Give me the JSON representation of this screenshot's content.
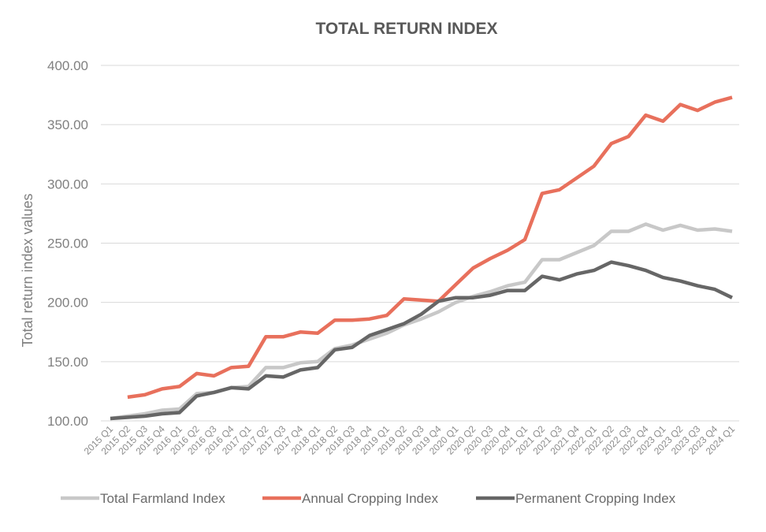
{
  "chart_data": {
    "type": "line",
    "title": "TOTAL RETURN INDEX",
    "ylabel": "Total return index values",
    "xlabel": "",
    "ylim": [
      100,
      400
    ],
    "yticks": [
      "100.00",
      "150.00",
      "200.00",
      "250.00",
      "300.00",
      "350.00",
      "400.00"
    ],
    "grid": true,
    "legend": "bottom",
    "categories": [
      "2015 Q1",
      "2015 Q2",
      "2015 Q3",
      "2015 Q4",
      "2016 Q1",
      "2016 Q2",
      "2016 Q3",
      "2016 Q4",
      "2017 Q1",
      "2017 Q2",
      "2017 Q3",
      "2017 Q4",
      "2018 Q1",
      "2018 Q2",
      "2018 Q3",
      "2018 Q4",
      "2019 Q1",
      "2019 Q2",
      "2019 Q3",
      "2019 Q4",
      "2020 Q1",
      "2020 Q2",
      "2020 Q3",
      "2020 Q4",
      "2021 Q1",
      "2021 Q2",
      "2021 Q3",
      "2021 Q4",
      "2022 Q1",
      "2022 Q2",
      "2022 Q3",
      "2022 Q4",
      "2023 Q1",
      "2023 Q2",
      "2023 Q3",
      "2023 Q4",
      "2024 Q1"
    ],
    "series": [
      {
        "name": "Total Farmland Index",
        "color": "#c8c8c8",
        "values": [
          102,
          104,
          106,
          109,
          110,
          123,
          124,
          128,
          129,
          145,
          145,
          149,
          150,
          161,
          164,
          169,
          174,
          181,
          186,
          192,
          200,
          205,
          209,
          214,
          217,
          236,
          236,
          242,
          248,
          260,
          260,
          266,
          261,
          265,
          261,
          262,
          260
        ]
      },
      {
        "name": "Annual Cropping Index",
        "color": "#e8705c",
        "values": [
          null,
          120,
          122,
          127,
          129,
          140,
          138,
          145,
          146,
          171,
          171,
          175,
          174,
          185,
          185,
          186,
          189,
          203,
          202,
          201,
          215,
          229,
          237,
          244,
          253,
          292,
          295,
          305,
          315,
          334,
          340,
          358,
          353,
          367,
          362,
          369,
          373
        ]
      },
      {
        "name": "Permanent Cropping Index",
        "color": "#666666",
        "values": [
          102,
          103,
          104,
          106,
          107,
          121,
          124,
          128,
          127,
          138,
          137,
          143,
          145,
          160,
          162,
          172,
          177,
          182,
          190,
          201,
          204,
          204,
          206,
          210,
          210,
          222,
          219,
          224,
          227,
          234,
          231,
          227,
          221,
          218,
          214,
          211,
          204
        ]
      }
    ]
  }
}
